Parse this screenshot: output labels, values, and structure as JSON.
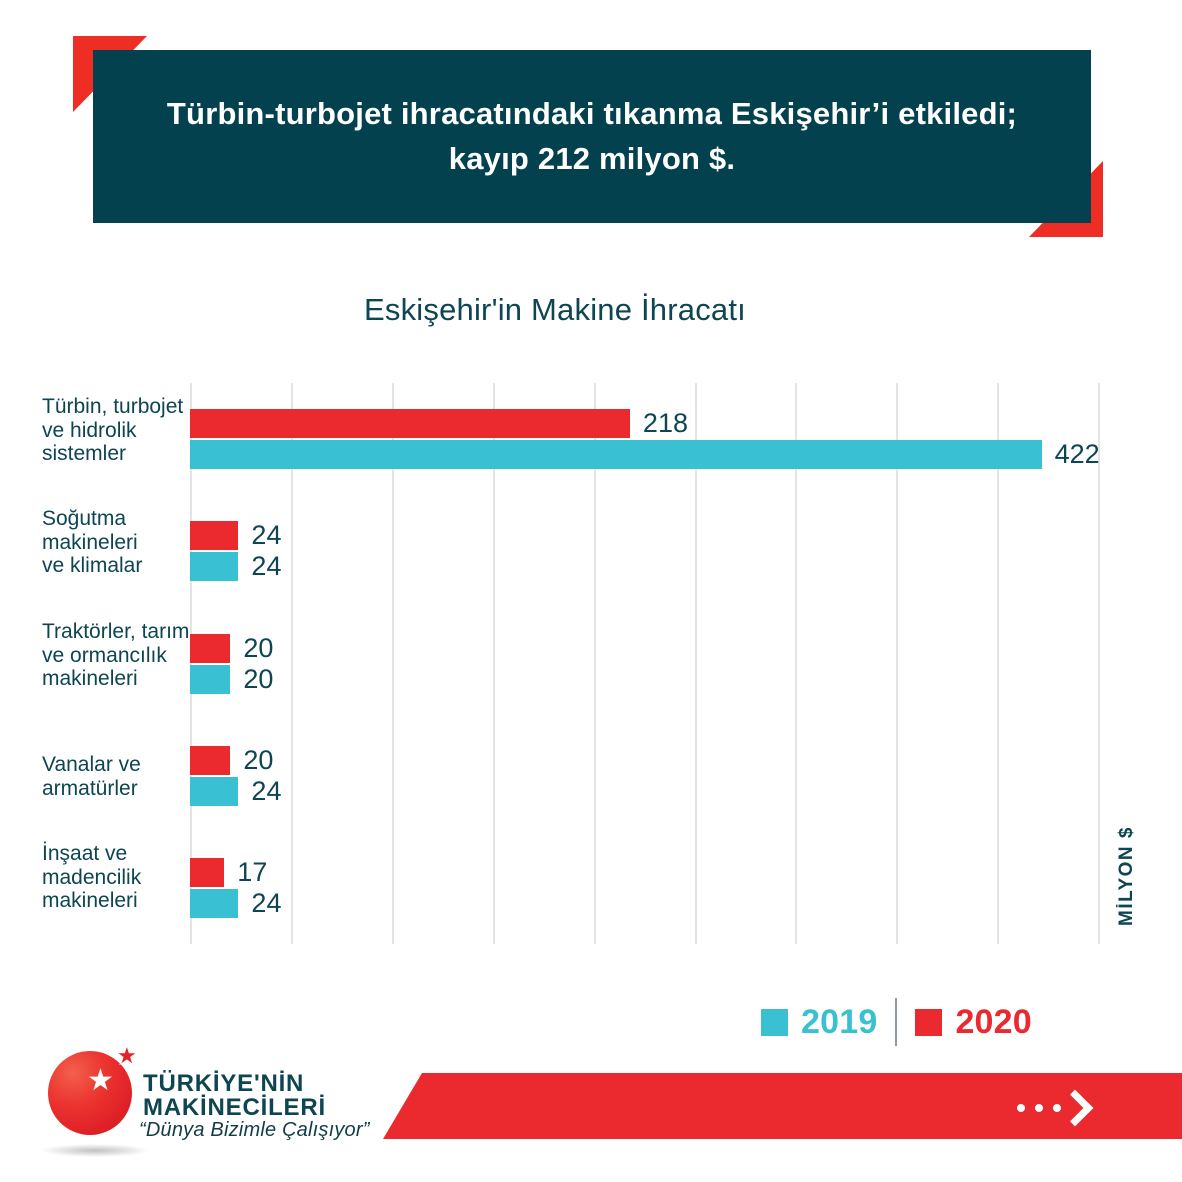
{
  "colors": {
    "banner_bg": "#04414e",
    "accent_red": "#ee2e24",
    "bar_red": "#ea2a2e",
    "bar_teal": "#39c0d3",
    "text_dark": "#0d4551",
    "gridline": "#e4e4e4"
  },
  "banner": {
    "line1": "Türbin-turbojet ihracatındaki tıkanma Eskişehir’i etkiledi;",
    "line2": "kayıp 212 milyon $."
  },
  "chart_data": {
    "type": "bar",
    "orientation": "horizontal",
    "title": "Eskişehir'in Makine İhracatı",
    "unit_label": "MİLYON $",
    "categories": [
      "Türbin, turbojet ve hidrolik sistemler",
      "Soğutma makineleri ve klimalar",
      "Traktörler, tarım ve ormancılık makineleri",
      "Vanalar ve armatürler",
      "İnşaat ve madencilik makineleri"
    ],
    "category_lines": [
      [
        "Türbin, turbojet",
        "ve hidrolik",
        "sistemler"
      ],
      [
        "Soğutma",
        "makineleri",
        "ve klimalar"
      ],
      [
        "Traktörler, tarım",
        "ve ormancılık",
        "makineleri"
      ],
      [
        "Vanalar ve",
        "armatürler"
      ],
      [
        "İnşaat ve",
        "madencilik",
        "makineleri"
      ]
    ],
    "series": [
      {
        "name": "2020",
        "color": "#ea2a2e",
        "values": [
          218,
          24,
          20,
          20,
          17
        ]
      },
      {
        "name": "2019",
        "color": "#39c0d3",
        "values": [
          422,
          24,
          20,
          24,
          24
        ]
      }
    ],
    "value_axis": {
      "min": 0,
      "max": 450,
      "grid_step": 50,
      "tick_labels_visible": false
    },
    "data_labels": true,
    "grid": true,
    "legend_position": "bottom"
  },
  "legend_items": [
    {
      "label": "2019",
      "color": "#39c0d3"
    },
    {
      "label": "2020",
      "color": "#ea2a2e"
    }
  ],
  "logo": {
    "line1": "TÜRKİYE'NİN",
    "line2": "MAKİNECİLERİ",
    "tagline": "“Dünya Bizimle Çalışıyor”"
  },
  "icons": {
    "footer_arrow": "ellipsis-chevron-right-icon",
    "logo_star": "star-icon"
  }
}
